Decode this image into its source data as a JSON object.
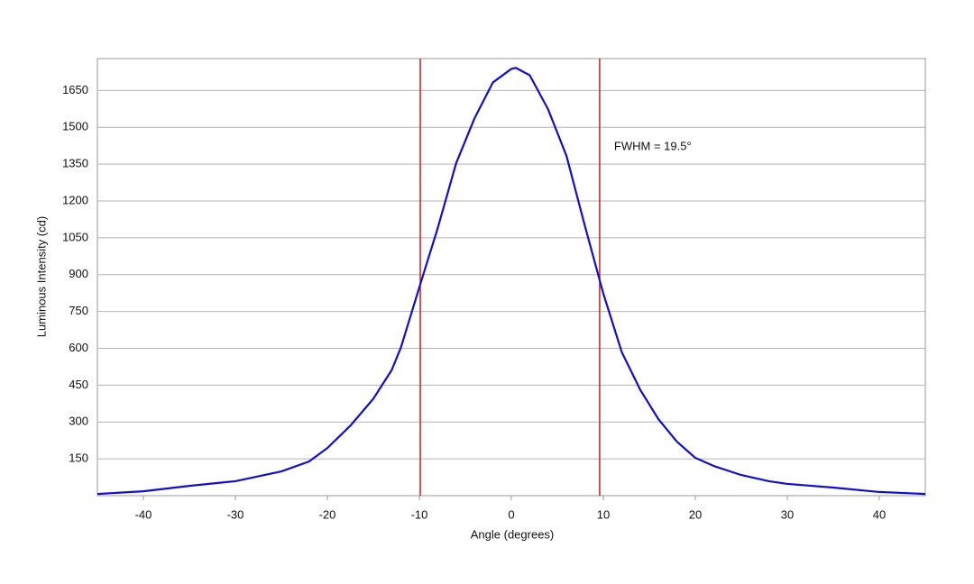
{
  "chart_data": {
    "type": "line",
    "xlabel": "Angle (degrees)",
    "ylabel": "Luminous Intensity (cd)",
    "x": [
      -45,
      -40,
      -35,
      -30,
      -25,
      -22,
      -20,
      -17.5,
      -15,
      -13,
      -12,
      -10,
      -8,
      -6,
      -4,
      -2,
      0,
      0.5,
      2,
      4,
      6,
      8,
      10,
      12,
      14,
      16,
      18,
      20,
      22,
      25,
      28,
      30,
      35,
      40,
      45
    ],
    "values": [
      7,
      18,
      40,
      59,
      99,
      139,
      194,
      285,
      395,
      512,
      604,
      849,
      1090,
      1354,
      1537,
      1683,
      1738,
      1742,
      1712,
      1573,
      1383,
      1098,
      823,
      585,
      432,
      311,
      220,
      154,
      121,
      84,
      59,
      48,
      33,
      15,
      7
    ],
    "color": "#1010cc",
    "vlines": [
      -9.9,
      9.6
    ],
    "vline_color": "#d81818",
    "annotation": "FWHM = 19.5°",
    "xlim": [
      -45,
      45
    ],
    "xticks": [
      -40,
      -30,
      -20,
      -10,
      0,
      10,
      20,
      30,
      40
    ],
    "ylim": [
      0,
      1780
    ],
    "yticks": [
      150,
      300,
      450,
      600,
      750,
      900,
      1050,
      1200,
      1350,
      1500,
      1650
    ],
    "grid": true
  }
}
